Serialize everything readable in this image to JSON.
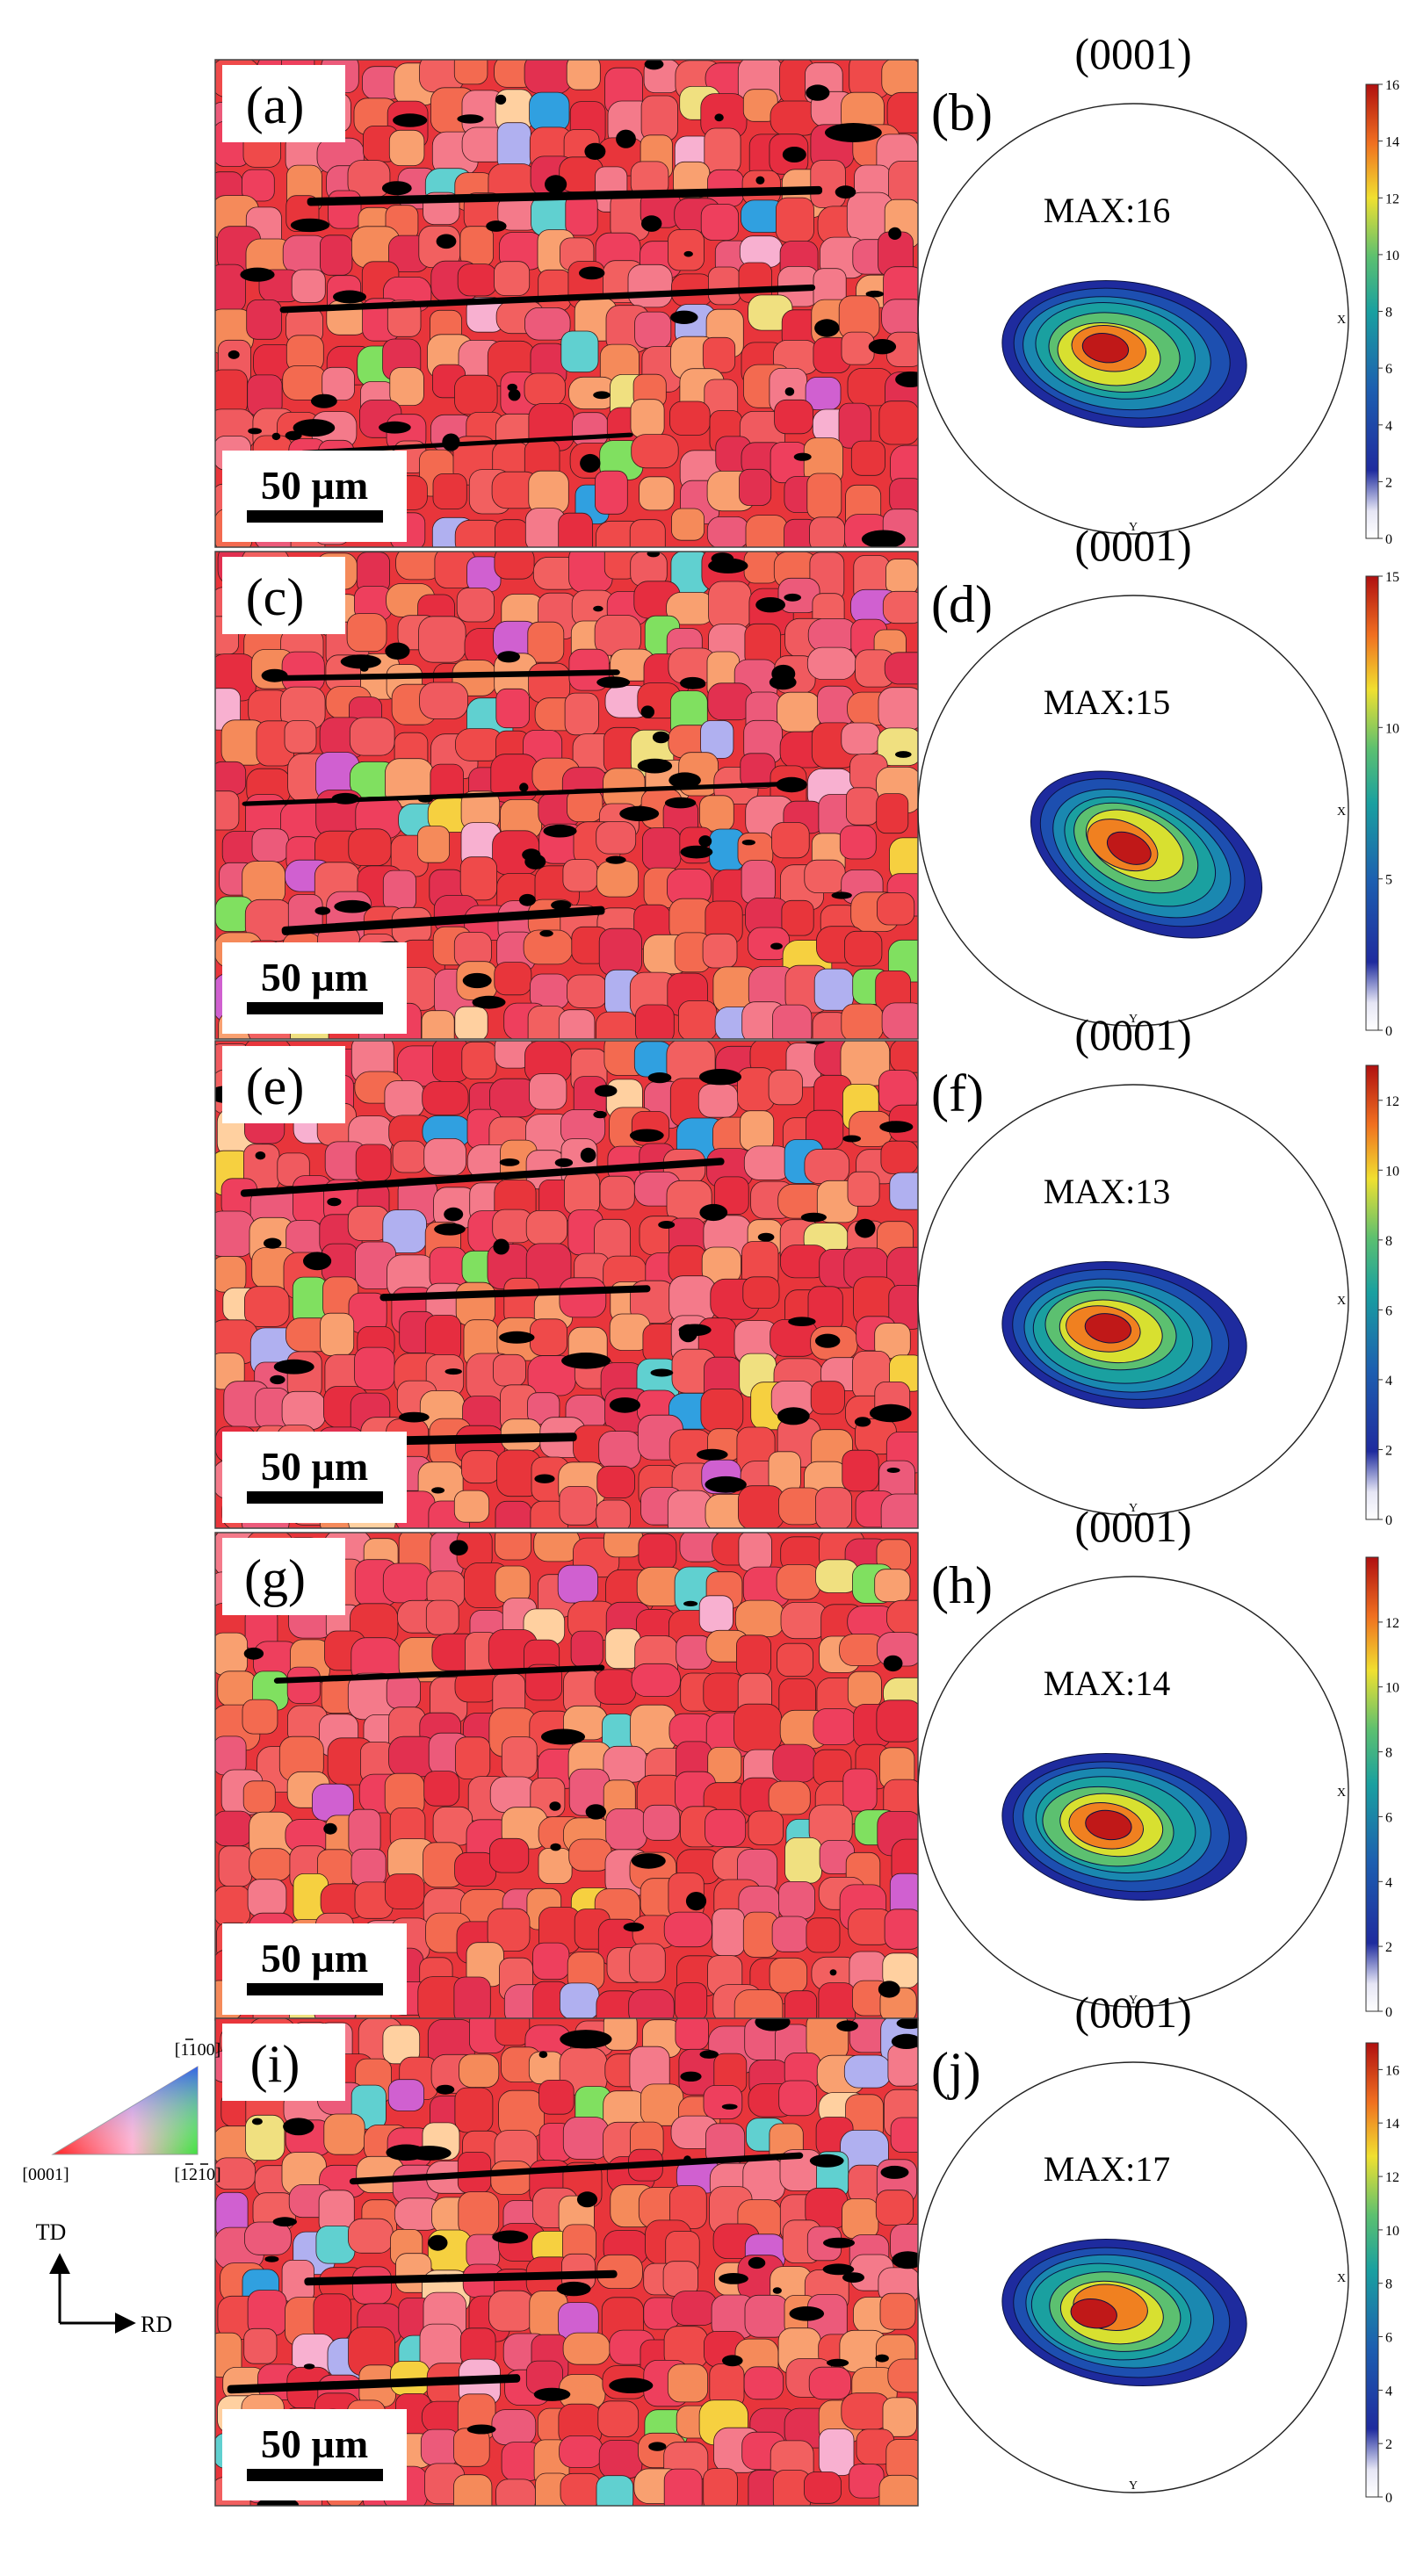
{
  "figure": {
    "panels": [
      {
        "ebsd_label": "(a)",
        "scale_bar": "50 µm",
        "pf_label": "(b)",
        "pf_plane": "(0001)",
        "pf_max": "MAX:16",
        "pf_max_value": 16,
        "colorbar_ticks": [
          "16",
          "14",
          "12",
          "10",
          "8",
          "6",
          "4",
          "2",
          "0"
        ],
        "colorbar_tick_values": [
          16,
          14,
          12,
          10,
          8,
          6,
          4,
          2,
          0
        ]
      },
      {
        "ebsd_label": "(c)",
        "scale_bar": "50 µm",
        "pf_label": "(d)",
        "pf_plane": "(0001)",
        "pf_max": "MAX:15",
        "pf_max_value": 15,
        "colorbar_ticks": [
          "15",
          "10",
          "5",
          "0"
        ],
        "colorbar_tick_values": [
          15,
          10,
          5,
          0
        ]
      },
      {
        "ebsd_label": "(e)",
        "scale_bar": "50 µm",
        "pf_label": "(f)",
        "pf_plane": "(0001)",
        "pf_max": "MAX:13",
        "pf_max_value": 13,
        "colorbar_ticks": [
          "12",
          "10",
          "8",
          "6",
          "4",
          "2",
          "0"
        ],
        "colorbar_tick_values": [
          12,
          10,
          8,
          6,
          4,
          2,
          0
        ]
      },
      {
        "ebsd_label": "(g)",
        "scale_bar": "50 µm",
        "pf_label": "(h)",
        "pf_plane": "(0001)",
        "pf_max": "MAX:14",
        "pf_max_value": 14,
        "colorbar_ticks": [
          "12",
          "10",
          "8",
          "6",
          "4",
          "2",
          "0"
        ],
        "colorbar_tick_values": [
          12,
          10,
          8,
          6,
          4,
          2,
          0
        ]
      },
      {
        "ebsd_label": "(i)",
        "scale_bar": "50 µm",
        "pf_label": "(j)",
        "pf_plane": "(0001)",
        "pf_max": "MAX:17",
        "pf_max_value": 17,
        "colorbar_ticks": [
          "16",
          "14",
          "12",
          "10",
          "8",
          "6",
          "4",
          "2",
          "0"
        ],
        "colorbar_tick_values": [
          16,
          14,
          12,
          10,
          8,
          6,
          4,
          2,
          0
        ]
      }
    ],
    "pole_figure_axes": {
      "x": "X",
      "y": "Y"
    },
    "ipf_key": {
      "corner_top": "[1100]",
      "corner_left": "[0001]",
      "corner_right": "[1210]"
    },
    "direction_axes": {
      "vertical": "TD",
      "horizontal": "RD"
    },
    "colors": {
      "grain_base": "#e8353b",
      "boundary": "#000000",
      "jet_low": "#1e2b9e",
      "jet_high": "#b01010"
    }
  }
}
